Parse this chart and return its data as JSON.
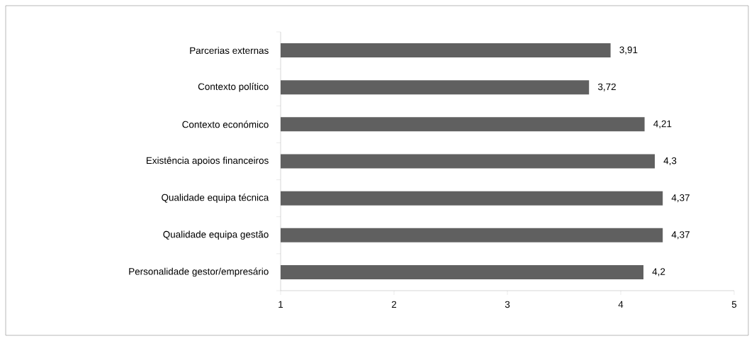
{
  "chart_data": {
    "type": "bar",
    "orientation": "horizontal",
    "categories": [
      "Parcerias externas",
      "Contexto político",
      "Contexto económico",
      "Existência apoios financeiros",
      "Qualidade equipa técnica",
      "Qualidade equipa gestão",
      "Personalidade gestor/empresário"
    ],
    "values": [
      3.91,
      3.72,
      4.21,
      4.3,
      4.37,
      4.37,
      4.2
    ],
    "value_labels": [
      "3,91",
      "3,72",
      "4,21",
      "4,3",
      "4,37",
      "4,37",
      "4,2"
    ],
    "color": "#606060",
    "xlim": [
      1,
      5
    ],
    "xticks": [
      1,
      2,
      3,
      4,
      5
    ],
    "grid": false
  }
}
